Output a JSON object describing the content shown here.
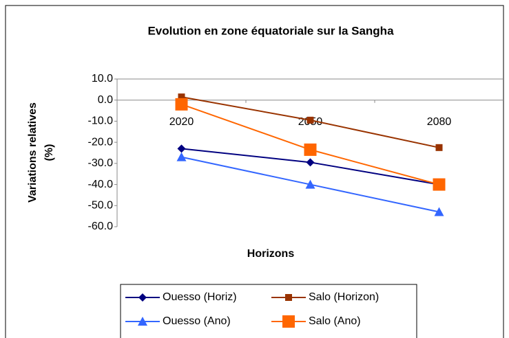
{
  "chart_data": {
    "type": "line",
    "title": "Evolution en zone équatoriale sur la Sangha",
    "y_label": [
      "Variations relatives",
      "(%)"
    ],
    "x_label": "Horizons",
    "categories": [
      "2020",
      "2050",
      "2080"
    ],
    "series": [
      {
        "name": "Ouesso (Horiz)",
        "color": "#000080",
        "marker": "diamond",
        "values": [
          -23,
          -29.5,
          -40
        ]
      },
      {
        "name": "Salo (Horizon)",
        "color": "#993300",
        "marker": "square",
        "values": [
          1.5,
          -9.5,
          -22.5
        ]
      },
      {
        "name": "Ouesso (Ano)",
        "color": "#3366ff",
        "marker": "triangle",
        "values": [
          -27,
          -40,
          -53
        ]
      },
      {
        "name": "Salo (Ano)",
        "color": "#ff6600",
        "marker": "bigsquare",
        "values": [
          -2,
          -23.5,
          -40
        ]
      }
    ],
    "ylim": [
      -60,
      10
    ],
    "yticks": [
      {
        "value": 10,
        "label": "10.0"
      },
      {
        "value": 0,
        "label": "0.0"
      },
      {
        "value": -10,
        "label": "-10.0"
      },
      {
        "value": -20,
        "label": "-20.0"
      },
      {
        "value": -30,
        "label": "-30.0"
      },
      {
        "value": -40,
        "label": "-40.0"
      },
      {
        "value": -50,
        "label": "-50.0"
      },
      {
        "value": -60,
        "label": "-60.0"
      }
    ]
  }
}
